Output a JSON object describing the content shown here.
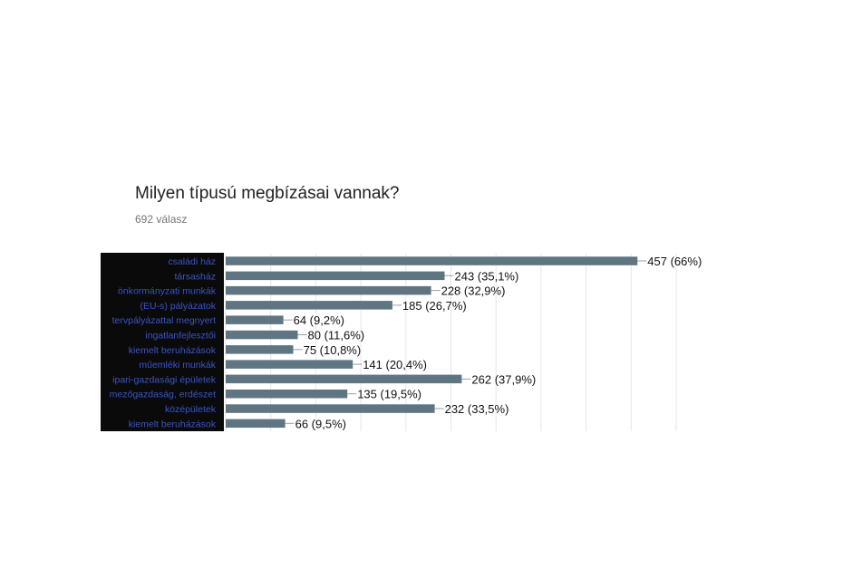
{
  "header": {
    "title": "Milyen típusú megbízásai vannak?",
    "response_count": "692 válasz"
  },
  "chart_data": {
    "type": "bar",
    "orientation": "horizontal",
    "categories": [
      "családi ház",
      "társasház",
      "önkormányzati munkák",
      "(EU-s) pályázatok",
      "tervpályázattal megnyert",
      "ingatlanfejlesztői",
      "kiemelt beruházások",
      "műemléki munkák",
      "ipari-gazdasági épületek",
      "mezőgazdaság, erdészet",
      "középületek",
      "kiemelt beruházások"
    ],
    "values": [
      457,
      243,
      228,
      185,
      64,
      80,
      75,
      141,
      262,
      135,
      232,
      66
    ],
    "value_labels": [
      "457 (66%)",
      "243 (35,1%)",
      "228 (32,9%)",
      "185 (26,7%)",
      "64 (9,2%)",
      "80 (11,6%)",
      "75 (10,8%)",
      "141 (20,4%)",
      "262 (37,9%)",
      "135 (19,5%)",
      "232 (33,5%)",
      "66 (9,5%)"
    ],
    "xlim": [
      0,
      500
    ],
    "grid": true,
    "colors": {
      "bar": "#5f7582",
      "label_panel": "#0a0a0a",
      "category_text": "#3a55c8",
      "gridline": "#e6e6e6"
    }
  }
}
